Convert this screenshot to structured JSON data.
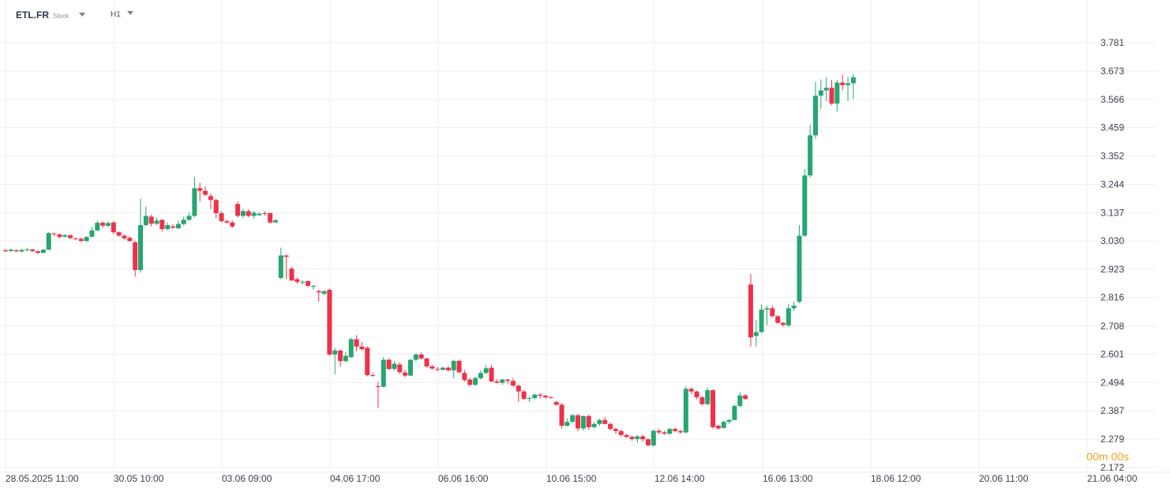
{
  "toolbar": {
    "symbol": "ETL.FR",
    "symbol_type": "Stock",
    "timeframe": "H1"
  },
  "countdown": {
    "minutes": "00",
    "minutes_unit": "m",
    "seconds": "00",
    "seconds_unit": "s"
  },
  "colors": {
    "up": "#26a670",
    "down": "#ee3148",
    "grid": "#eeeef0",
    "countdown": "#f0a020"
  },
  "chart_data": {
    "type": "candlestick",
    "y_ticks": [
      "3.781",
      "3.673",
      "3.566",
      "3.459",
      "3.352",
      "3.244",
      "3.137",
      "3.030",
      "2.923",
      "2.816",
      "2.708",
      "2.601",
      "2.494",
      "2.387",
      "2.279",
      "2.172"
    ],
    "x_ticks": [
      "28.05.2025  11:00",
      "30.05  10:00",
      "03.06  09:00",
      "04.06  17:00",
      "06.06  16:00",
      "10.06  15:00",
      "12.06  14:00",
      "16.06  13:00",
      "18.06  12:00",
      "20.06  11:00",
      "21.06  04:00"
    ],
    "ylim": [
      2.172,
      3.781
    ],
    "candles": [
      [
        2.995,
        2.991,
        2.998,
        2.989
      ],
      [
        2.992,
        2.997,
        3.001,
        2.988
      ],
      [
        2.995,
        2.991,
        2.998,
        2.988
      ],
      [
        2.99,
        2.996,
        3.0,
        2.987
      ],
      [
        2.995,
        2.998,
        3.003,
        2.99
      ],
      [
        2.998,
        2.992,
        3.0,
        2.988
      ],
      [
        2.991,
        2.985,
        2.993,
        2.98
      ],
      [
        2.985,
        2.997,
        3.0,
        2.982
      ],
      [
        2.997,
        3.06,
        3.064,
        2.995
      ],
      [
        3.058,
        3.055,
        3.062,
        3.048
      ],
      [
        3.055,
        3.045,
        3.057,
        3.04
      ],
      [
        3.046,
        3.052,
        3.056,
        3.044
      ],
      [
        3.052,
        3.041,
        3.054,
        3.036
      ],
      [
        3.04,
        3.038,
        3.043,
        3.033
      ],
      [
        3.038,
        3.03,
        3.043,
        3.025
      ],
      [
        3.03,
        3.045,
        3.049,
        3.026
      ],
      [
        3.046,
        3.07,
        3.083,
        3.043
      ],
      [
        3.07,
        3.099,
        3.107,
        3.067
      ],
      [
        3.099,
        3.088,
        3.104,
        3.08
      ],
      [
        3.087,
        3.098,
        3.104,
        3.082
      ],
      [
        3.1,
        3.063,
        3.105,
        3.055
      ],
      [
        3.063,
        3.05,
        3.067,
        3.046
      ],
      [
        3.05,
        3.04,
        3.055,
        3.035
      ],
      [
        3.042,
        3.03,
        3.048,
        3.026
      ],
      [
        3.025,
        2.92,
        3.03,
        2.895
      ],
      [
        2.92,
        3.09,
        3.19,
        2.91
      ],
      [
        3.09,
        3.125,
        3.16,
        3.085
      ],
      [
        3.122,
        3.095,
        3.13,
        3.085
      ],
      [
        3.095,
        3.107,
        3.118,
        3.09
      ],
      [
        3.11,
        3.075,
        3.112,
        3.065
      ],
      [
        3.075,
        3.09,
        3.1,
        3.07
      ],
      [
        3.085,
        3.08,
        3.093,
        3.076
      ],
      [
        3.078,
        3.094,
        3.107,
        3.075
      ],
      [
        3.094,
        3.11,
        3.123,
        3.088
      ],
      [
        3.11,
        3.125,
        3.139,
        3.106
      ],
      [
        3.125,
        3.23,
        3.273,
        3.12
      ],
      [
        3.23,
        3.22,
        3.25,
        3.18
      ],
      [
        3.22,
        3.205,
        3.237,
        3.2
      ],
      [
        3.2,
        3.185,
        3.21,
        3.15
      ],
      [
        3.185,
        3.135,
        3.19,
        3.116
      ],
      [
        3.135,
        3.105,
        3.143,
        3.1
      ],
      [
        3.105,
        3.1,
        3.111,
        3.096
      ],
      [
        3.1,
        3.085,
        3.107,
        3.08
      ],
      [
        3.17,
        3.125,
        3.18,
        3.118
      ],
      [
        3.125,
        3.143,
        3.152,
        3.116
      ],
      [
        3.143,
        3.125,
        3.15,
        3.12
      ],
      [
        3.125,
        3.137,
        3.144,
        3.115
      ],
      [
        3.127,
        3.133,
        3.138,
        3.127
      ],
      [
        3.135,
        3.132,
        3.143,
        3.126
      ],
      [
        3.135,
        3.1,
        3.138,
        3.095
      ],
      [
        3.1,
        3.108,
        3.114,
        3.105
      ],
      [
        2.89,
        2.975,
        3.005,
        2.885
      ],
      [
        2.975,
        2.97,
        2.979,
        2.885
      ],
      [
        2.925,
        2.88,
        2.932,
        2.88
      ],
      [
        2.885,
        2.875,
        2.892,
        2.868
      ],
      [
        2.872,
        2.875,
        2.882,
        2.864
      ],
      [
        2.878,
        2.86,
        2.88,
        2.855
      ],
      [
        2.858,
        2.86,
        2.863,
        2.846
      ],
      [
        2.84,
        2.835,
        2.845,
        2.8
      ],
      [
        2.83,
        2.84,
        2.843,
        2.825
      ],
      [
        2.845,
        2.6,
        2.85,
        2.595
      ],
      [
        2.6,
        2.615,
        2.625,
        2.525
      ],
      [
        2.615,
        2.575,
        2.618,
        2.555
      ],
      [
        2.575,
        2.595,
        2.61,
        2.57
      ],
      [
        2.59,
        2.658,
        2.664,
        2.586
      ],
      [
        2.658,
        2.63,
        2.673,
        2.612
      ],
      [
        2.63,
        2.62,
        2.648,
        2.615
      ],
      [
        2.625,
        2.522,
        2.631,
        2.518
      ],
      [
        2.522,
        2.52,
        2.532,
        2.515
      ],
      [
        2.48,
        2.478,
        2.496,
        2.398
      ],
      [
        2.478,
        2.58,
        2.59,
        2.475
      ],
      [
        2.58,
        2.545,
        2.586,
        2.542
      ],
      [
        2.545,
        2.565,
        2.575,
        2.54
      ],
      [
        2.562,
        2.533,
        2.57,
        2.525
      ],
      [
        2.532,
        2.52,
        2.542,
        2.514
      ],
      [
        2.52,
        2.58,
        2.583,
        2.518
      ],
      [
        2.58,
        2.6,
        2.605,
        2.575
      ],
      [
        2.6,
        2.585,
        2.608,
        2.58
      ],
      [
        2.585,
        2.555,
        2.588,
        2.55
      ],
      [
        2.555,
        2.547,
        2.561,
        2.543
      ],
      [
        2.545,
        2.543,
        2.552,
        2.537
      ],
      [
        2.542,
        2.55,
        2.555,
        2.54
      ],
      [
        2.55,
        2.54,
        2.557,
        2.535
      ],
      [
        2.54,
        2.576,
        2.58,
        2.51
      ],
      [
        2.576,
        2.533,
        2.58,
        2.528
      ],
      [
        2.53,
        2.503,
        2.541,
        2.498
      ],
      [
        2.505,
        2.485,
        2.512,
        2.48
      ],
      [
        2.485,
        2.511,
        2.515,
        2.482
      ],
      [
        2.51,
        2.53,
        2.54,
        2.505
      ],
      [
        2.53,
        2.548,
        2.56,
        2.525
      ],
      [
        2.55,
        2.498,
        2.56,
        2.494
      ],
      [
        2.498,
        2.493,
        2.507,
        2.49
      ],
      [
        2.493,
        2.505,
        2.508,
        2.485
      ],
      [
        2.505,
        2.5,
        2.508,
        2.49
      ],
      [
        2.5,
        2.482,
        2.512,
        2.477
      ],
      [
        2.482,
        2.46,
        2.486,
        2.42
      ],
      [
        2.46,
        2.432,
        2.465,
        2.428
      ],
      [
        2.432,
        2.435,
        2.442,
        2.42
      ],
      [
        2.435,
        2.448,
        2.452,
        2.43
      ],
      [
        2.448,
        2.444,
        2.454,
        2.433
      ],
      [
        2.444,
        2.438,
        2.448,
        2.432
      ],
      [
        2.438,
        2.437,
        2.442,
        2.433
      ],
      [
        2.42,
        2.41,
        2.425,
        2.405
      ],
      [
        2.41,
        2.33,
        2.415,
        2.32
      ],
      [
        2.33,
        2.345,
        2.359,
        2.328
      ],
      [
        2.345,
        2.37,
        2.375,
        2.34
      ],
      [
        2.37,
        2.32,
        2.375,
        2.31
      ],
      [
        2.32,
        2.367,
        2.369,
        2.312
      ],
      [
        2.367,
        2.325,
        2.373,
        2.315
      ],
      [
        2.325,
        2.337,
        2.345,
        2.32
      ],
      [
        2.337,
        2.352,
        2.356,
        2.33
      ],
      [
        2.352,
        2.337,
        2.363,
        2.335
      ],
      [
        2.337,
        2.318,
        2.342,
        2.313
      ],
      [
        2.318,
        2.31,
        2.322,
        2.3
      ],
      [
        2.31,
        2.295,
        2.315,
        2.29
      ],
      [
        2.295,
        2.288,
        2.3,
        2.284
      ],
      [
        2.288,
        2.28,
        2.293,
        2.273
      ],
      [
        2.28,
        2.29,
        2.295,
        2.266
      ],
      [
        2.29,
        2.279,
        2.297,
        2.27
      ],
      [
        2.279,
        2.256,
        2.283,
        2.252
      ],
      [
        2.256,
        2.311,
        2.316,
        2.25
      ],
      [
        2.311,
        2.305,
        2.318,
        2.297
      ],
      [
        2.305,
        2.3,
        2.311,
        2.296
      ],
      [
        2.3,
        2.318,
        2.323,
        2.295
      ],
      [
        2.318,
        2.31,
        2.323,
        2.305
      ],
      [
        2.31,
        2.305,
        2.315,
        2.3
      ],
      [
        2.305,
        2.47,
        2.48,
        2.3
      ],
      [
        2.47,
        2.46,
        2.475,
        2.45
      ],
      [
        2.46,
        2.438,
        2.463,
        2.43
      ],
      [
        2.438,
        2.412,
        2.442,
        2.407
      ],
      [
        2.412,
        2.465,
        2.475,
        2.408
      ],
      [
        2.465,
        2.325,
        2.468,
        2.32
      ],
      [
        2.33,
        2.32,
        2.335,
        2.315
      ],
      [
        2.322,
        2.345,
        2.35,
        2.318
      ],
      [
        2.345,
        2.352,
        2.356,
        2.338
      ],
      [
        2.352,
        2.405,
        2.41,
        2.35
      ],
      [
        2.405,
        2.445,
        2.457,
        2.4
      ],
      [
        2.445,
        2.432,
        2.45,
        2.428
      ],
      [
        2.865,
        2.665,
        2.905,
        2.63
      ],
      [
        2.67,
        2.685,
        2.73,
        2.63
      ],
      [
        2.685,
        2.77,
        2.79,
        2.68
      ],
      [
        2.77,
        2.775,
        2.785,
        2.71
      ],
      [
        2.775,
        2.745,
        2.785,
        2.74
      ],
      [
        2.745,
        2.72,
        2.75,
        2.715
      ],
      [
        2.72,
        2.712,
        2.724,
        2.705
      ],
      [
        2.71,
        2.775,
        2.79,
        2.705
      ],
      [
        2.775,
        2.785,
        2.8,
        2.765
      ],
      [
        2.8,
        3.05,
        3.09,
        2.795
      ],
      [
        3.05,
        3.278,
        3.302,
        3.045
      ],
      [
        3.278,
        3.43,
        3.47,
        3.27
      ],
      [
        3.43,
        3.58,
        3.633,
        3.415
      ],
      [
        3.58,
        3.6,
        3.642,
        3.53
      ],
      [
        3.6,
        3.61,
        3.65,
        3.56
      ],
      [
        3.61,
        3.55,
        3.64,
        3.545
      ],
      [
        3.55,
        3.63,
        3.64,
        3.52
      ],
      [
        3.63,
        3.62,
        3.66,
        3.6
      ],
      [
        3.62,
        3.627,
        3.652,
        3.56
      ],
      [
        3.627,
        3.65,
        3.663,
        3.568
      ]
    ]
  }
}
